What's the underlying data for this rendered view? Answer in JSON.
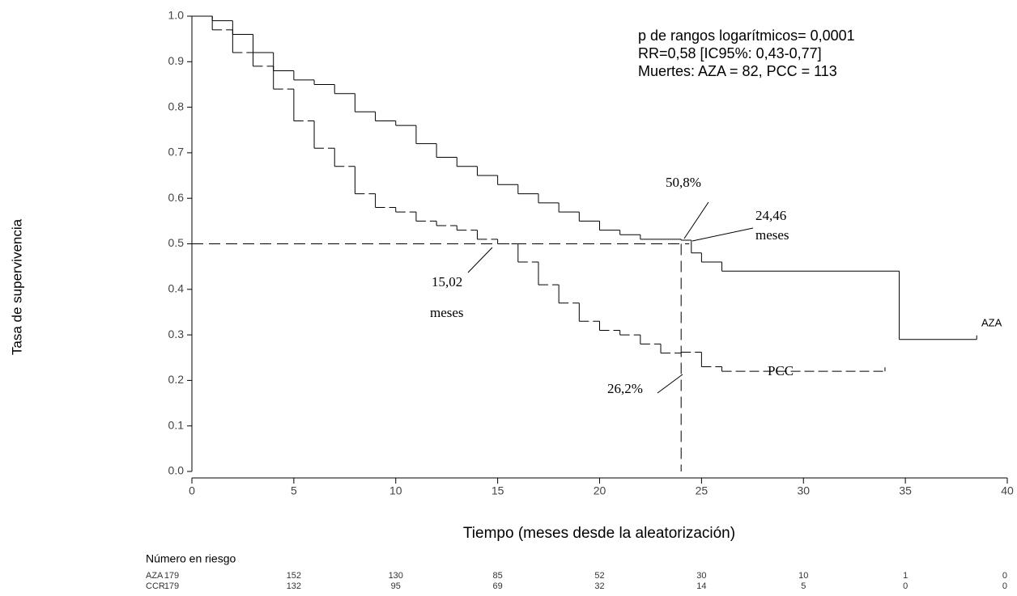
{
  "chart_data": {
    "type": "step",
    "x_label": "Tiempo (meses desde la aleatorización)",
    "y_label": "Tasa de supervivencia",
    "xlim": [
      0,
      40
    ],
    "ylim": [
      0,
      1
    ],
    "xticks": [
      0,
      5,
      10,
      15,
      20,
      25,
      30,
      35,
      40
    ],
    "yticks": [
      {
        "value": 0,
        "label": "0.0"
      },
      {
        "value": 0.1,
        "label": "0.1"
      },
      {
        "value": 0.2,
        "label": "0.2"
      },
      {
        "value": 0.3,
        "label": "0.3"
      },
      {
        "value": 0.4,
        "label": "0.4"
      },
      {
        "value": 0.5,
        "label": "0.5"
      },
      {
        "value": 0.6,
        "label": "0.6"
      },
      {
        "value": 0.7,
        "label": "0.7"
      },
      {
        "value": 0.8,
        "label": "0.8"
      },
      {
        "value": 0.9,
        "label": "0.9"
      },
      {
        "value": 1,
        "label": "1.0"
      }
    ],
    "series": [
      {
        "name": "AZA",
        "color": "#000000",
        "dashed": false,
        "x": [
          0,
          1,
          2,
          3,
          4,
          5,
          6,
          7,
          8,
          9,
          10,
          11,
          12,
          13,
          14,
          15,
          16,
          17,
          18,
          19,
          20,
          21,
          22,
          24,
          24.5,
          25,
          26,
          34.7,
          38.5
        ],
        "values": [
          1.0,
          0.99,
          0.96,
          0.92,
          0.88,
          0.86,
          0.85,
          0.83,
          0.79,
          0.77,
          0.76,
          0.72,
          0.69,
          0.67,
          0.65,
          0.63,
          0.61,
          0.59,
          0.57,
          0.55,
          0.53,
          0.52,
          0.51,
          0.508,
          0.48,
          0.46,
          0.44,
          0.29,
          0.29
        ]
      },
      {
        "name": "PCC",
        "color": "#000000",
        "dashed": true,
        "x": [
          0,
          1,
          2,
          3,
          4,
          5,
          6,
          7,
          8,
          9,
          10,
          11,
          12,
          13,
          14,
          15,
          16,
          17,
          18,
          19,
          20,
          21,
          22,
          23,
          24,
          25,
          26,
          34
        ],
        "values": [
          1.0,
          0.97,
          0.92,
          0.89,
          0.84,
          0.77,
          0.71,
          0.67,
          0.61,
          0.58,
          0.57,
          0.55,
          0.54,
          0.53,
          0.51,
          0.5,
          0.46,
          0.41,
          0.37,
          0.33,
          0.31,
          0.3,
          0.28,
          0.26,
          0.262,
          0.23,
          0.22,
          0.22
        ]
      }
    ],
    "reference_lines": {
      "y": 0.5,
      "x": 24
    },
    "stats": [
      "p de rangos logarítmicos= 0,0001",
      "RR=0,58 [IC95%: 0,43-0,77]",
      "Muertes: AZA = 82, PCC = 113"
    ],
    "annotations": {
      "aza_median_pct": "50,8%",
      "aza_time_value": "24,46",
      "aza_time_unit": "meses",
      "pcc_median_value": "15,02",
      "pcc_median_unit": "meses",
      "pcc_pct": "26,2%",
      "pcc_label": "PCC",
      "aza_label": "AZA"
    },
    "risk_table": {
      "title": "Número en riesgo",
      "rows": [
        {
          "label": "AZA",
          "values": [
            179,
            152,
            130,
            85,
            52,
            30,
            10,
            1,
            0
          ]
        },
        {
          "label": "CCR",
          "values": [
            179,
            132,
            95,
            69,
            32,
            14,
            5,
            0,
            0
          ]
        }
      ]
    }
  }
}
